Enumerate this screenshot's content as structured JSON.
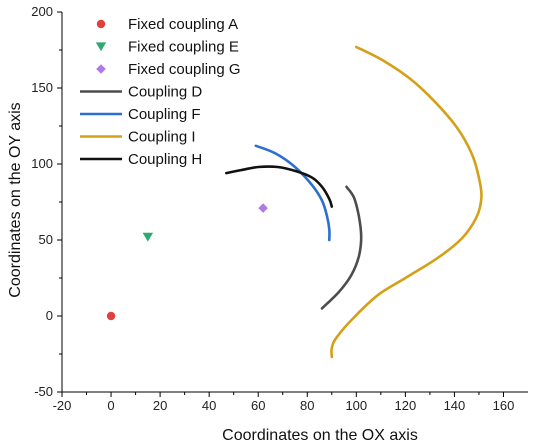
{
  "chart_data": {
    "type": "scatter",
    "title": "",
    "xlabel": "Coordinates on the OX axis",
    "ylabel": "Coordinates on the OY axis",
    "xlim": [
      -20,
      170
    ],
    "ylim": [
      -50,
      200
    ],
    "xticks": [
      -20,
      0,
      20,
      40,
      60,
      80,
      100,
      120,
      140,
      160
    ],
    "yticks": [
      -50,
      0,
      50,
      100,
      150,
      200
    ],
    "grid": false,
    "legend_position": "top-left",
    "points": [
      {
        "name": "Fixed coupling  A",
        "marker": "circle",
        "color": "#e04040",
        "x": 0,
        "y": 0
      },
      {
        "name": "Fixed coupling  E",
        "marker": "triangle-down",
        "color": "#2faa6e",
        "x": 15,
        "y": 52
      },
      {
        "name": "Fixed coupling  G",
        "marker": "diamond",
        "color": "#b07ae6",
        "x": 62,
        "y": 71
      }
    ],
    "curves": [
      {
        "name": "Coupling  D",
        "color": "#4d4d4d",
        "points": [
          [
            96,
            85
          ],
          [
            99,
            78
          ],
          [
            101,
            66
          ],
          [
            102,
            52
          ],
          [
            101,
            39
          ],
          [
            98,
            27
          ],
          [
            93,
            16
          ],
          [
            86,
            5
          ]
        ]
      },
      {
        "name": "Coupling  F",
        "color": "#2b6fd1",
        "points": [
          [
            59,
            112
          ],
          [
            67,
            107
          ],
          [
            75,
            98
          ],
          [
            82,
            86
          ],
          [
            86,
            76
          ],
          [
            88,
            66
          ],
          [
            89,
            57
          ],
          [
            89,
            50
          ]
        ]
      },
      {
        "name": "Coupling  I",
        "color": "#d4a017",
        "points": [
          [
            100,
            177
          ],
          [
            111,
            168
          ],
          [
            122,
            156
          ],
          [
            132,
            141
          ],
          [
            141,
            124
          ],
          [
            147,
            107
          ],
          [
            150,
            91
          ],
          [
            151,
            78
          ],
          [
            149,
            65
          ],
          [
            143,
            51
          ],
          [
            133,
            38
          ],
          [
            120,
            25
          ],
          [
            109,
            14
          ],
          [
            99,
            -1
          ],
          [
            92,
            -14
          ],
          [
            90,
            -21
          ],
          [
            90,
            -27
          ]
        ]
      },
      {
        "name": "Coupling   H",
        "color": "#111111",
        "points": [
          [
            47,
            94
          ],
          [
            53,
            96
          ],
          [
            60,
            98
          ],
          [
            68,
            98
          ],
          [
            76,
            95
          ],
          [
            82,
            91
          ],
          [
            86,
            85
          ],
          [
            89,
            77
          ],
          [
            90,
            72
          ]
        ]
      }
    ]
  }
}
